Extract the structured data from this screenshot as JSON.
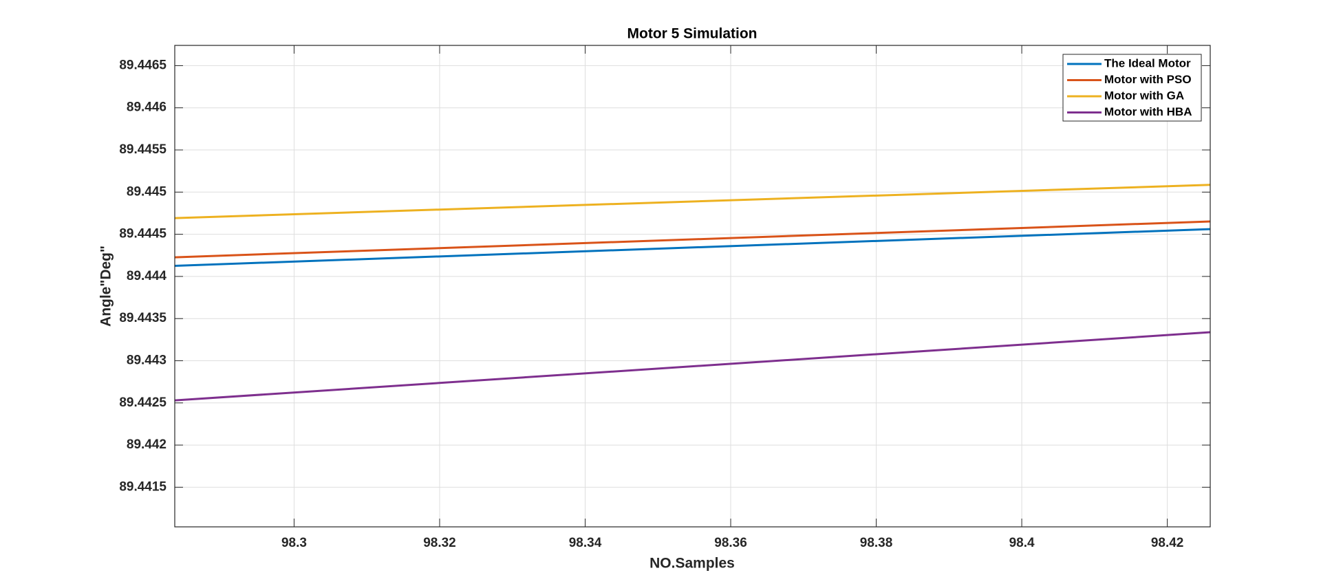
{
  "chart_data": {
    "type": "line",
    "title": "Motor 5 Simulation",
    "xlabel": "NO.Samples",
    "ylabel": "Angle\"Deg\"",
    "x": [
      98.2836,
      98.4259
    ],
    "series": [
      {
        "name": "The Ideal Motor",
        "color": "#0072BD",
        "values": [
          89.444126,
          89.444561
        ]
      },
      {
        "name": "Motor with PSO",
        "color": "#D95319",
        "values": [
          89.444227,
          89.444652
        ]
      },
      {
        "name": "Motor with GA",
        "color": "#EDB120",
        "values": [
          89.444692,
          89.445086
        ]
      },
      {
        "name": "Motor with HBA",
        "color": "#7E2F8E",
        "values": [
          89.44253,
          89.443338
        ]
      }
    ],
    "xlim": [
      98.2836,
      98.4259
    ],
    "xticks": [
      98.3,
      98.32,
      98.34,
      98.36,
      98.38,
      98.4,
      98.42
    ],
    "ylim": [
      89.44103,
      89.44674
    ],
    "yticks": [
      89.4415,
      89.442,
      89.4425,
      89.443,
      89.4435,
      89.444,
      89.4445,
      89.445,
      89.4455,
      89.446,
      89.4465
    ],
    "grid": true,
    "legend": "upper-right"
  }
}
